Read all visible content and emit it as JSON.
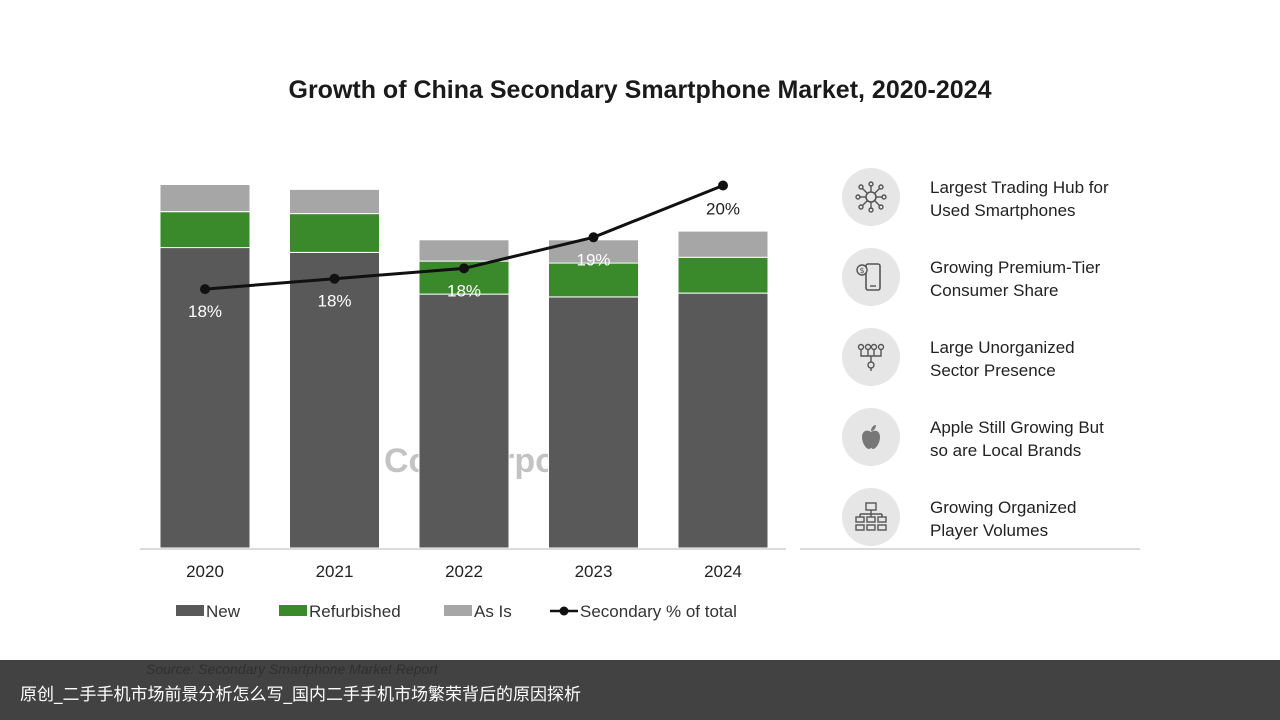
{
  "chart_data": {
    "type": "bar",
    "stacked": true,
    "title": "Growth of China Secondary Smartphone Market, 2020-2024",
    "categories": [
      "2020",
      "2021",
      "2022",
      "2023",
      "2024"
    ],
    "series": [
      {
        "name": "New",
        "color": "#595959",
        "values": [
          310,
          305,
          262,
          259,
          263
        ]
      },
      {
        "name": "Refurbished",
        "color": "#3a8a2c",
        "values": [
          37,
          40,
          34,
          35,
          37
        ]
      },
      {
        "name": "As Is",
        "color": "#a6a6a6",
        "values": [
          28,
          25,
          22,
          24,
          27
        ]
      }
    ],
    "line_series": {
      "name": "Secondary % of total",
      "color": "#111111",
      "values": [
        18.0,
        18.2,
        18.4,
        19.0,
        20.0
      ],
      "labels": [
        "18%",
        "18%",
        "18%",
        "19%",
        "20%"
      ]
    },
    "ylim": [
      0,
      390
    ],
    "line_ylim": [
      13.0,
      20.3
    ],
    "grid": false,
    "legend_position": "bottom",
    "source": "Source: Secondary Smartphone Market Report",
    "watermark": "Counterpoint"
  },
  "side_panel": {
    "items": [
      {
        "icon": "network-icon",
        "lines": [
          "Largest Trading Hub for",
          "Used Smartphones"
        ]
      },
      {
        "icon": "phone-dollar-icon",
        "lines": [
          "Growing Premium-Tier",
          "Consumer Share"
        ]
      },
      {
        "icon": "flowchart-icon",
        "lines": [
          "Large Unorganized",
          "Sector Presence"
        ]
      },
      {
        "icon": "apple-icon",
        "lines": [
          "Apple Still Growing But",
          "so are Local Brands"
        ]
      },
      {
        "icon": "org-chart-icon",
        "lines": [
          "Growing Organized",
          "Player Volumes"
        ]
      }
    ]
  },
  "caption": "原创_二手手机市场前景分析怎么写_国内二手手机市场繁荣背后的原因探析"
}
